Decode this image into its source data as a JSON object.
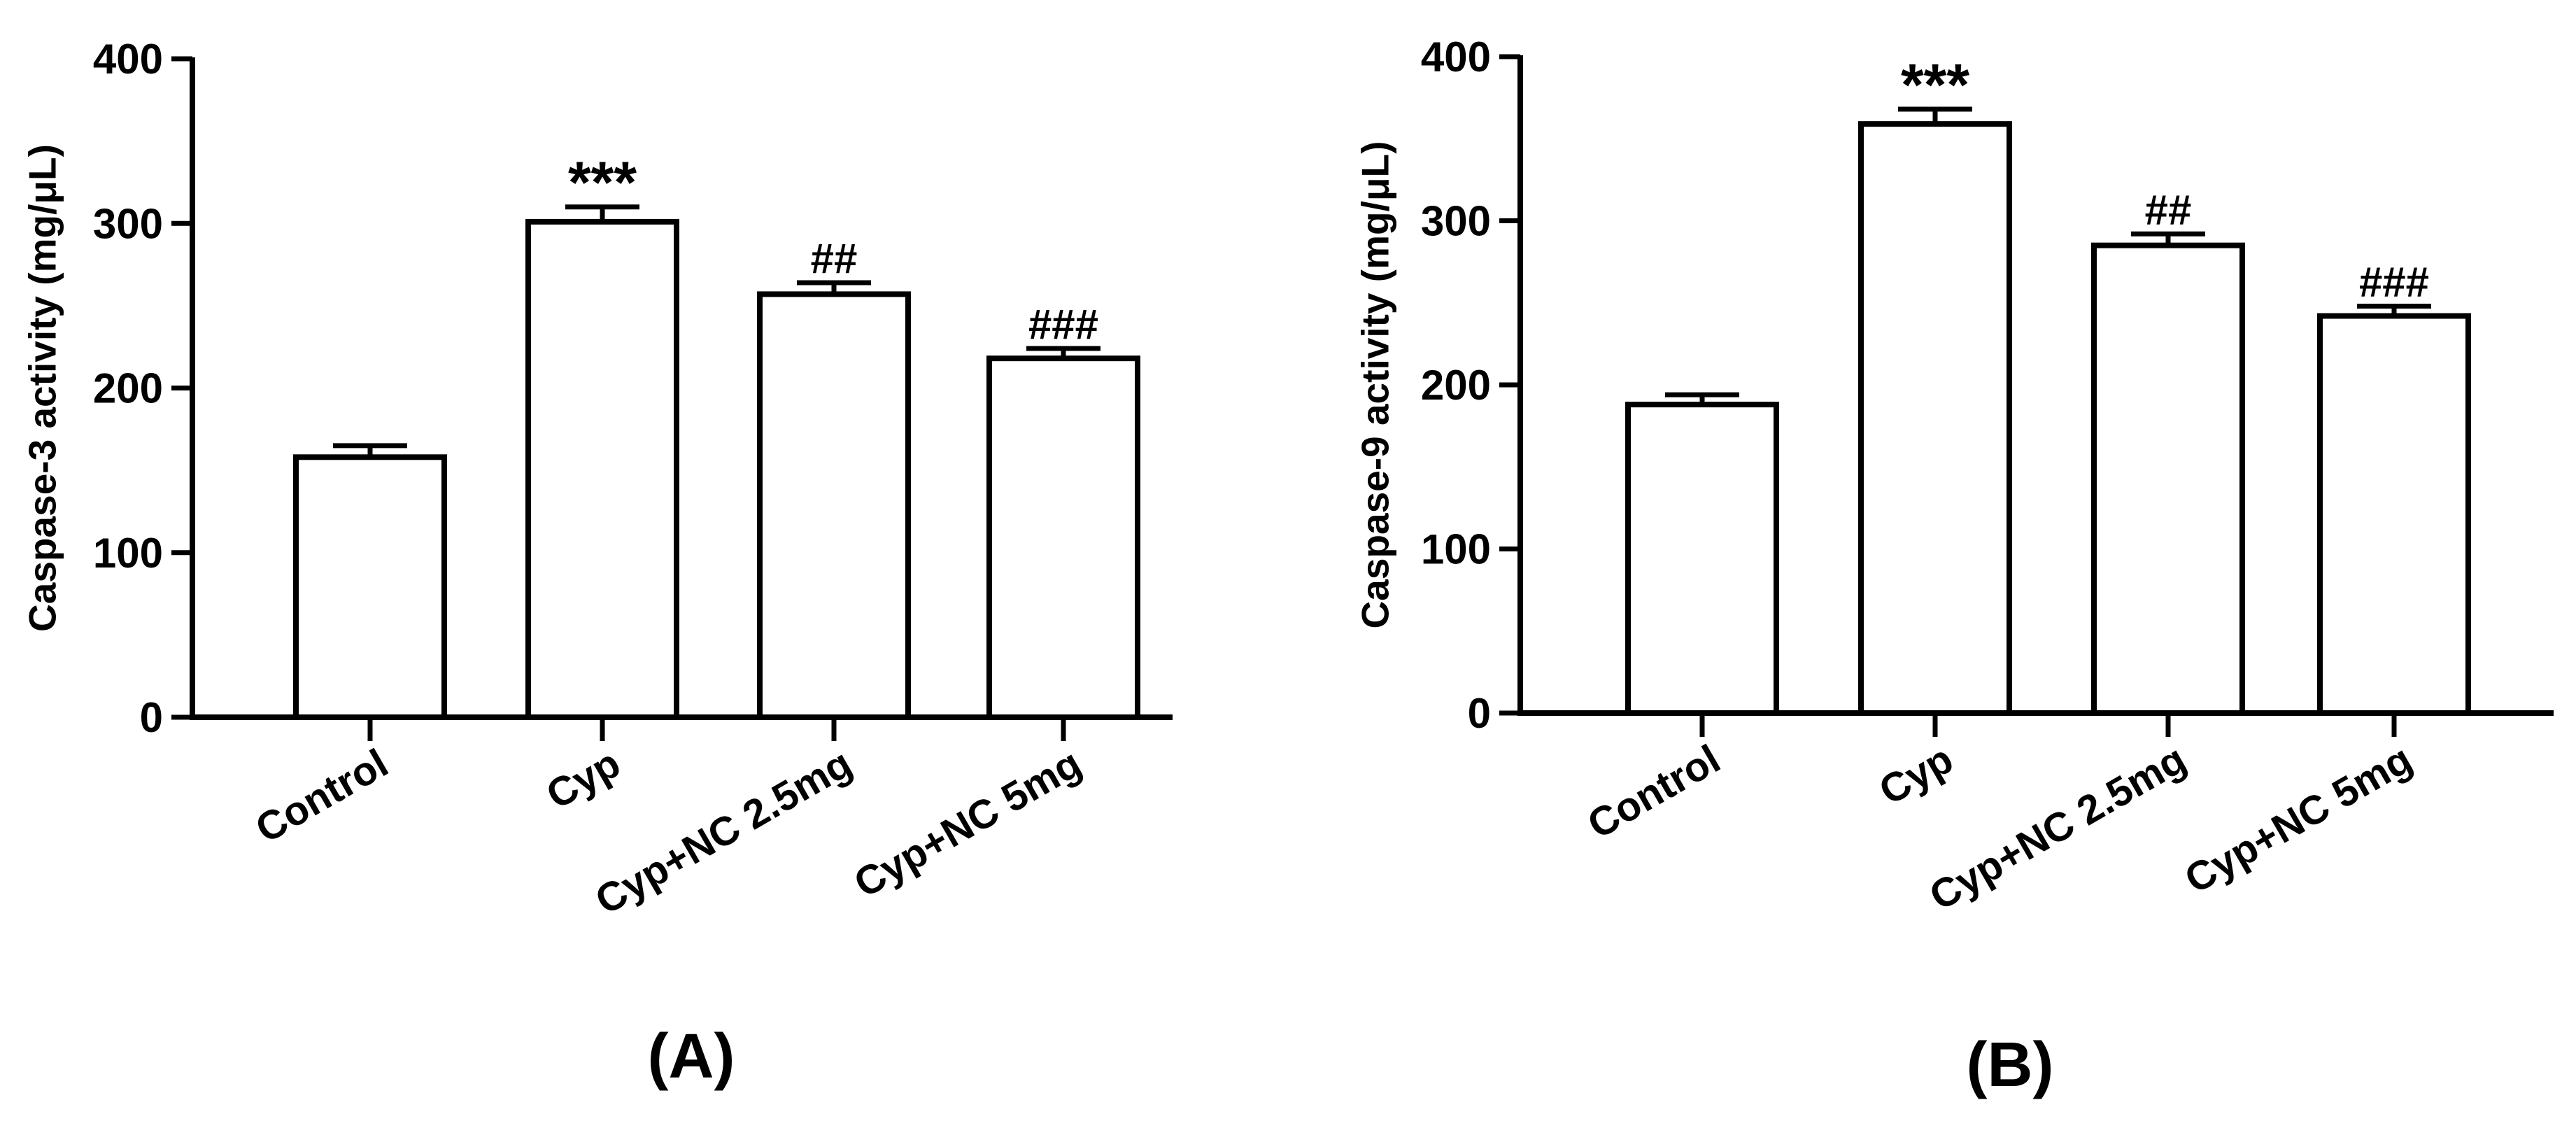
{
  "figure": {
    "panels_order": [
      "A",
      "B"
    ]
  },
  "chart_data": [
    {
      "type": "bar",
      "panel_label": "(A)",
      "categories": [
        "Control",
        "Cyp",
        "Cyp+NC 2.5mg",
        "Cyp+NC 5mg"
      ],
      "values": [
        158,
        301,
        257,
        218
      ],
      "errors": [
        7,
        9,
        7,
        6
      ],
      "annotations": [
        "",
        "***",
        "##",
        "###"
      ],
      "title": "",
      "xlabel": "",
      "ylabel": "Caspase-3 activity (mg/μL)",
      "ylim": [
        0,
        400
      ],
      "yticks": [
        0,
        100,
        200,
        300,
        400
      ],
      "grid": false,
      "bar_fill": "#ffffff",
      "bar_stroke": "#000000"
    },
    {
      "type": "bar",
      "panel_label": "(B)",
      "categories": [
        "Control",
        "Cyp",
        "Cyp+NC 2.5mg",
        "Cyp+NC 5mg"
      ],
      "values": [
        188,
        359,
        285,
        242
      ],
      "errors": [
        6,
        9,
        7,
        6
      ],
      "annotations": [
        "",
        "***",
        "##",
        "###"
      ],
      "title": "",
      "xlabel": "",
      "ylabel": "Caspase-9 activity (mg/μL)",
      "ylim": [
        0,
        400
      ],
      "yticks": [
        0,
        100,
        200,
        300,
        400
      ],
      "grid": false,
      "bar_fill": "#ffffff",
      "bar_stroke": "#000000"
    }
  ]
}
